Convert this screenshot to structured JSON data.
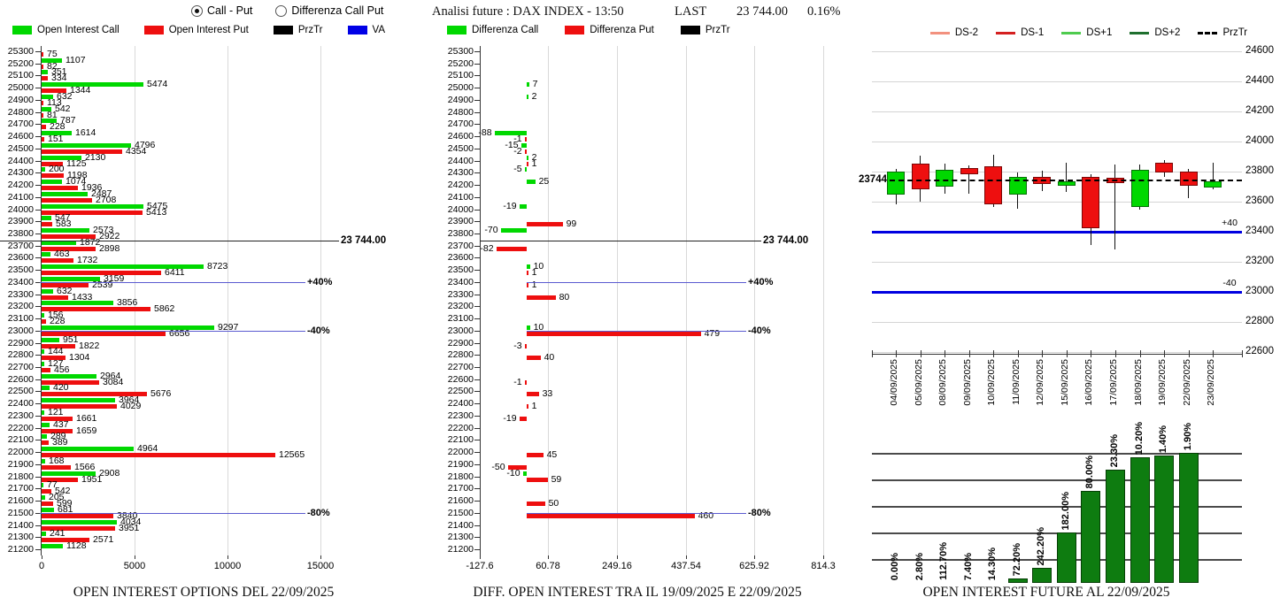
{
  "header": {
    "radio_options": [
      {
        "label": "Call - Put",
        "selected": true
      },
      {
        "label": "Differenza Call Put",
        "selected": false
      }
    ]
  },
  "left_panel": {
    "legend": [
      {
        "label": "Open Interest Call",
        "color": "#00d800"
      },
      {
        "label": "Open Interest Put",
        "color": "#ee0f0f"
      },
      {
        "label": "PrzTr",
        "color": "#000000"
      },
      {
        "label": "VA",
        "color": "#0000e6"
      }
    ],
    "title": "OPEN INTEREST OPTIONS DEL 22/09/2025"
  },
  "middle_panel": {
    "info": {
      "title": "Analisi future : DAX INDEX - 13:50",
      "last_label": "LAST",
      "last_value": "23 744.00",
      "change_pct": "0.16%"
    },
    "legend": [
      {
        "label": "Differenza Call",
        "color": "#00d800"
      },
      {
        "label": "Differenza Put",
        "color": "#ee0f0f"
      },
      {
        "label": "PrzTr",
        "color": "#000000"
      }
    ],
    "title": "DIFF. OPEN INTEREST TRA IL 19/09/2025 E 22/09/2025"
  },
  "right_panel": {
    "legend": [
      {
        "label": "DS-2",
        "color": "#f2917e",
        "dashed": false
      },
      {
        "label": "DS-1",
        "color": "#d42020",
        "dashed": false
      },
      {
        "label": "DS+1",
        "color": "#4ecb4e",
        "dashed": false
      },
      {
        "label": "DS+2",
        "color": "#1e6f2e",
        "dashed": false
      },
      {
        "label": "PrzTr",
        "color": "#000000",
        "dashed": true
      }
    ],
    "title": "OPEN INTEREST FUTURE AL 22/09/2025"
  },
  "chart_data": [
    {
      "id": "open_interest_options",
      "type": "bar",
      "orientation": "horizontal",
      "title": "OPEN INTEREST OPTIONS DEL 22/09/2025",
      "strike_top": 25300,
      "strike_bottom": 21200,
      "strike_step": 100,
      "series_names": [
        "Open Interest Call",
        "Open Interest Put"
      ],
      "call_color": "#00d800",
      "put_color": "#ee0f0f",
      "xticks": [
        "0",
        "5000",
        "10000",
        "15000"
      ],
      "rows": [
        [
          25300,
          0,
          75
        ],
        [
          25200,
          1107,
          82
        ],
        [
          25100,
          351,
          334
        ],
        [
          25000,
          5474,
          1344
        ],
        [
          24900,
          632,
          113
        ],
        [
          24800,
          542,
          81
        ],
        [
          24700,
          787,
          228
        ],
        [
          24600,
          1614,
          151
        ],
        [
          24500,
          4796,
          4354
        ],
        [
          24400,
          2130,
          1125
        ],
        [
          24300,
          200,
          1198
        ],
        [
          24200,
          1074,
          1936
        ],
        [
          24100,
          2487,
          2708
        ],
        [
          24000,
          5475,
          5413
        ],
        [
          23900,
          547,
          583
        ],
        [
          23800,
          2573,
          2922
        ],
        [
          23700,
          1872,
          2898
        ],
        [
          23600,
          463,
          1732
        ],
        [
          23500,
          8723,
          6411
        ],
        [
          23400,
          3159,
          2539
        ],
        [
          23300,
          632,
          1433
        ],
        [
          23200,
          3856,
          5862
        ],
        [
          23100,
          156,
          228
        ],
        [
          23000,
          9297,
          6656
        ],
        [
          22900,
          951,
          1822
        ],
        [
          22800,
          144,
          1304
        ],
        [
          22700,
          127,
          456
        ],
        [
          22600,
          2964,
          3084
        ],
        [
          22500,
          420,
          5676
        ],
        [
          22400,
          3964,
          4029
        ],
        [
          22300,
          121,
          1661
        ],
        [
          22200,
          437,
          1659
        ],
        [
          22100,
          289,
          389
        ],
        [
          22000,
          4964,
          12565
        ],
        [
          21900,
          168,
          1566
        ],
        [
          21800,
          2908,
          1951
        ],
        [
          21700,
          77,
          542
        ],
        [
          21600,
          205,
          599
        ],
        [
          21500,
          681,
          3840
        ],
        [
          21400,
          4034,
          3951
        ],
        [
          21300,
          241,
          2571
        ],
        [
          21200,
          1128,
          0
        ]
      ],
      "annotations": [
        {
          "label": "23 744.00",
          "value": 23744,
          "kind": "price"
        },
        {
          "label": "+40%",
          "value": 23400,
          "kind": "va"
        },
        {
          "label": "-40%",
          "value": 23000,
          "kind": "va"
        },
        {
          "label": "-80%",
          "value": 21500,
          "kind": "va"
        }
      ]
    },
    {
      "id": "diff_open_interest",
      "type": "bar",
      "orientation": "horizontal",
      "title": "DIFF. OPEN INTEREST TRA IL 19/09/2025 E 22/09/2025",
      "strike_top": 25300,
      "strike_bottom": 21200,
      "strike_step": 100,
      "series_names": [
        "Differenza Call",
        "Differenza Put"
      ],
      "call_color": "#00d800",
      "put_color": "#ee0f0f",
      "xticks": [
        "-127.6",
        "60.78",
        "249.16",
        "437.54",
        "625.92",
        "814.3"
      ],
      "rows": [
        [
          25000,
          7,
          null
        ],
        [
          24900,
          2,
          null
        ],
        [
          24600,
          -88,
          -1
        ],
        [
          24500,
          -15,
          -2
        ],
        [
          24400,
          2,
          1
        ],
        [
          24300,
          -5,
          null
        ],
        [
          24200,
          25,
          null
        ],
        [
          24000,
          -19,
          null
        ],
        [
          23900,
          null,
          99
        ],
        [
          23800,
          -70,
          null
        ],
        [
          23700,
          null,
          -82
        ],
        [
          23500,
          10,
          1
        ],
        [
          23400,
          null,
          1
        ],
        [
          23300,
          null,
          80
        ],
        [
          23000,
          10,
          479
        ],
        [
          22900,
          null,
          -3
        ],
        [
          22800,
          null,
          40
        ],
        [
          22600,
          null,
          -1
        ],
        [
          22500,
          null,
          33
        ],
        [
          22400,
          null,
          1
        ],
        [
          22300,
          null,
          -19
        ],
        [
          22000,
          null,
          45
        ],
        [
          21900,
          null,
          -50
        ],
        [
          21800,
          -10,
          59
        ],
        [
          21600,
          null,
          50
        ],
        [
          21500,
          null,
          460
        ]
      ],
      "annotations": [
        {
          "label": "23 744.00",
          "value": 23744,
          "kind": "price"
        },
        {
          "label": "+40%",
          "value": 23400,
          "kind": "va"
        },
        {
          "label": "-40%",
          "value": 23000,
          "kind": "va"
        },
        {
          "label": "-80%",
          "value": 21500,
          "kind": "va"
        }
      ]
    },
    {
      "id": "future_candles",
      "type": "candlestick",
      "dates": [
        "04/09/2025",
        "05/09/2025",
        "08/09/2025",
        "09/09/2025",
        "10/09/2025",
        "11/09/2025",
        "12/09/2025",
        "15/09/2025",
        "16/09/2025",
        "17/09/2025",
        "18/09/2025",
        "19/09/2025",
        "22/09/2025",
        "23/09/2025"
      ],
      "ohlc": [
        [
          23650,
          23815,
          23585,
          23800
        ],
        [
          23855,
          23905,
          23600,
          23685
        ],
        [
          23700,
          23855,
          23650,
          23810
        ],
        [
          23825,
          23840,
          23650,
          23785
        ],
        [
          23835,
          23910,
          23565,
          23585
        ],
        [
          23645,
          23795,
          23555,
          23765
        ],
        [
          23765,
          23805,
          23670,
          23715
        ],
        [
          23705,
          23860,
          23665,
          23735
        ],
        [
          23765,
          23785,
          23310,
          23425
        ],
        [
          23760,
          23850,
          23285,
          23725
        ],
        [
          23565,
          23850,
          23550,
          23810
        ],
        [
          23860,
          23875,
          23765,
          23795
        ],
        [
          23800,
          23815,
          23625,
          23705
        ],
        [
          23695,
          23860,
          23680,
          23735
        ]
      ],
      "yticks": [
        24600,
        24400,
        24200,
        24000,
        23800,
        23600,
        23400,
        23200,
        23000,
        22800,
        22600
      ],
      "ylim": [
        22600,
        24600
      ],
      "price_line": {
        "label": "23744",
        "value": 23744
      },
      "levels": [
        {
          "label": "+40",
          "value": 23400
        },
        {
          "label": "-40",
          "value": 23000
        }
      ],
      "up_color": "#00d800",
      "down_color": "#ee0f0f",
      "level_color": "#0000e0"
    },
    {
      "id": "future_open_interest",
      "type": "bar",
      "title": "OPEN INTEREST FUTURE AL 22/09/2025",
      "categories": [
        "04/09/2025",
        "05/09/2025",
        "08/09/2025",
        "09/09/2025",
        "10/09/2025",
        "11/09/2025",
        "12/09/2025",
        "15/09/2025",
        "16/09/2025",
        "17/09/2025",
        "18/09/2025",
        "19/09/2025",
        "22/09/2025"
      ],
      "pct_labels": [
        "0.00%",
        "2.80%",
        "112.70%",
        "7.40%",
        "14.30%",
        "72.20%",
        "242.20%",
        "182.00%",
        "80.00%",
        "23.30%",
        "10.20%",
        "1.40%",
        "1.90%"
      ],
      "heights_rel": [
        0,
        0,
        0,
        0,
        0,
        3.4,
        11.6,
        38.8,
        70.7,
        87.1,
        96.6,
        98.0,
        100.0
      ],
      "bar_color": "#0e7c10"
    }
  ]
}
